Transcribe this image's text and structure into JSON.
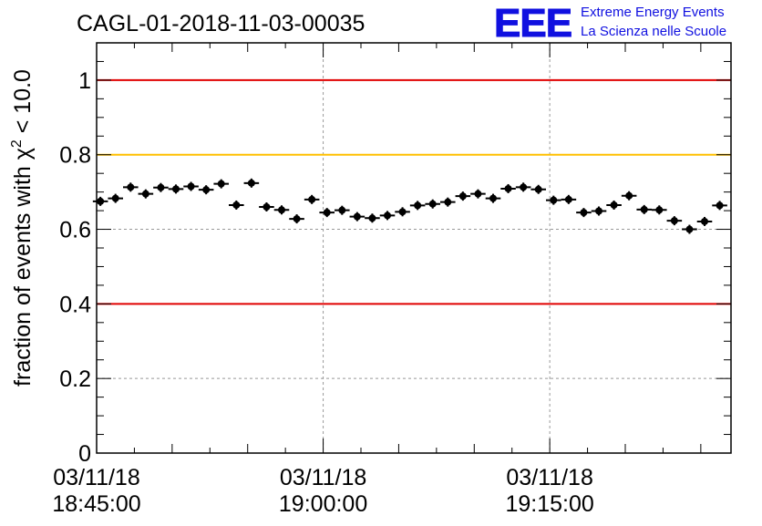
{
  "logo": {
    "mark": "EEE",
    "line1": "Extreme Energy Events",
    "line2": "La Scienza nelle Scuole",
    "color": "#1010e0"
  },
  "chart_data": {
    "type": "scatter",
    "title": "CAGL-01-2018-11-03-00035",
    "xlabel": "",
    "ylabel": "fraction of events with χ² < 10.0",
    "ylim": [
      0,
      1.1
    ],
    "y_ticks": [
      0,
      0.2,
      0.4,
      0.6,
      0.8,
      1
    ],
    "y_tick_labels": [
      "0",
      "0.2",
      "0.4",
      "0.6",
      "0.8",
      "1"
    ],
    "x_axis_time_range_minutes": [
      0,
      42
    ],
    "x_ticks_minutes": [
      0,
      15,
      30
    ],
    "x_tick_labels": [
      [
        "03/11/18",
        "18:45:00"
      ],
      [
        "03/11/18",
        "19:00:00"
      ],
      [
        "03/11/18",
        "19:15:00"
      ]
    ],
    "grid": true,
    "reference_lines": [
      {
        "y": 1.0,
        "color": "#e00000"
      },
      {
        "y": 0.8,
        "color": "#ffc000"
      },
      {
        "y": 0.4,
        "color": "#e00000"
      }
    ],
    "series": [
      {
        "color": "#000000",
        "x_minutes": [
          0.25,
          1.25,
          2.25,
          3.25,
          4.25,
          5.25,
          6.25,
          7.25,
          8.25,
          9.25,
          10.25,
          11.25,
          12.25,
          13.25,
          14.25,
          15.25,
          16.25,
          17.25,
          18.25,
          19.25,
          20.25,
          21.25,
          22.25,
          23.25,
          24.25,
          25.25,
          26.25,
          27.25,
          28.25,
          29.25,
          30.25,
          31.25,
          32.25,
          33.25,
          34.25,
          35.25,
          36.25,
          37.25,
          38.25,
          39.25,
          40.25,
          41.25
        ],
        "y": [
          0.675,
          0.683,
          0.713,
          0.695,
          0.712,
          0.708,
          0.715,
          0.706,
          0.722,
          0.665,
          0.724,
          0.66,
          0.652,
          0.628,
          0.68,
          0.645,
          0.651,
          0.634,
          0.63,
          0.637,
          0.647,
          0.664,
          0.668,
          0.673,
          0.689,
          0.695,
          0.683,
          0.709,
          0.713,
          0.707,
          0.678,
          0.68,
          0.645,
          0.649,
          0.665,
          0.69,
          0.653,
          0.652,
          0.623,
          0.6,
          0.621,
          0.664
        ]
      }
    ]
  }
}
